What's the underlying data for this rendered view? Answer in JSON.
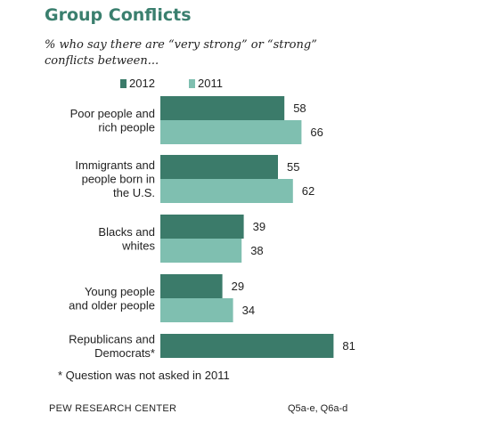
{
  "title": "Group Conflicts",
  "subtitle": "% who say there are “very strong” or “strong” conflicts between...",
  "colors": {
    "series_2012": "#3b7b6a",
    "series_2011": "#7fbfb0",
    "title": "#3a7f6e"
  },
  "chart_data": {
    "type": "bar",
    "orientation": "horizontal",
    "categories": [
      [
        "Poor people and",
        "rich people"
      ],
      [
        "Immigrants and",
        "people born in",
        "the U.S."
      ],
      [
        "Blacks and",
        "whites"
      ],
      [
        "Young people",
        "and older people"
      ],
      [
        "Republicans and",
        "Democrats*"
      ]
    ],
    "series": [
      {
        "name": "2012",
        "values": [
          58,
          55,
          39,
          29,
          81
        ]
      },
      {
        "name": "2011",
        "values": [
          66,
          62,
          38,
          34,
          null
        ]
      }
    ],
    "xlim": [
      0,
      100
    ],
    "grid": false,
    "legend": "top"
  },
  "footnote": "* Question was not asked in 2011",
  "source": "PEW RESEARCH CENTER",
  "question_ref": "Q5a-e, Q6a-d"
}
